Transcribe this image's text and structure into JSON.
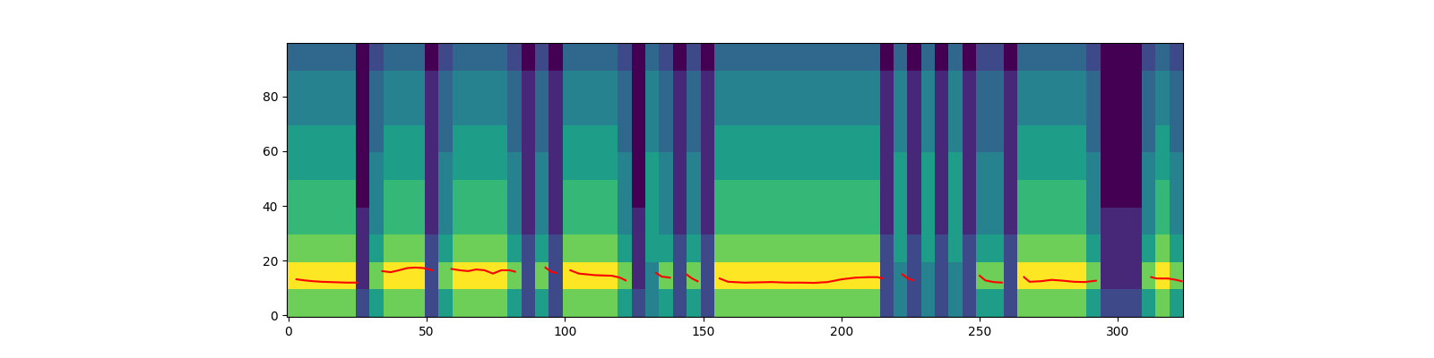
{
  "chart_data": {
    "type": "heatmap",
    "xlim": [
      -0.5,
      323.5
    ],
    "ylim": [
      -0.5,
      99.5
    ],
    "xticks": [
      0,
      50,
      100,
      150,
      200,
      250,
      300
    ],
    "yticks": [
      0,
      20,
      40,
      60,
      80
    ],
    "cells": [
      [
        7,
        7,
        7,
        7,
        7,
        2,
        5,
        7,
        7,
        7,
        2,
        5,
        7,
        7,
        7,
        7,
        5,
        2,
        5,
        2,
        7,
        7,
        7,
        7,
        5,
        2,
        4,
        5,
        2,
        5,
        2,
        7,
        7,
        7,
        7,
        7,
        7,
        7,
        7,
        7,
        7,
        7,
        7,
        2,
        4,
        2,
        4,
        2,
        4,
        2,
        5,
        5,
        2,
        7,
        7,
        7,
        7,
        7,
        5,
        2,
        2,
        2,
        5,
        7,
        5
      ],
      [
        9,
        9,
        9,
        9,
        9,
        1,
        7,
        9,
        9,
        9,
        2,
        7,
        9,
        9,
        9,
        9,
        7,
        2,
        7,
        2,
        9,
        9,
        9,
        9,
        7,
        1,
        4,
        7,
        2,
        7,
        2,
        9,
        9,
        9,
        9,
        9,
        9,
        9,
        9,
        9,
        9,
        9,
        9,
        2,
        4,
        2,
        4,
        2,
        4,
        2,
        7,
        7,
        2,
        9,
        9,
        9,
        9,
        9,
        7,
        1,
        1,
        1,
        7,
        9,
        7
      ],
      [
        7,
        7,
        7,
        7,
        7,
        1,
        5,
        7,
        7,
        7,
        2,
        5,
        7,
        7,
        7,
        7,
        5,
        2,
        5,
        2,
        7,
        7,
        7,
        7,
        5,
        1,
        5,
        5,
        2,
        5,
        2,
        7,
        7,
        7,
        7,
        7,
        7,
        7,
        7,
        7,
        7,
        7,
        7,
        2,
        5,
        2,
        5,
        2,
        5,
        2,
        5,
        5,
        2,
        7,
        7,
        7,
        7,
        7,
        5,
        1,
        1,
        1,
        5,
        7,
        5
      ],
      [
        6,
        6,
        6,
        6,
        6,
        1,
        4,
        6,
        6,
        6,
        1,
        4,
        6,
        6,
        6,
        6,
        4,
        1,
        4,
        1,
        6,
        6,
        6,
        6,
        4,
        1,
        5,
        4,
        1,
        4,
        1,
        6,
        6,
        6,
        6,
        6,
        6,
        6,
        6,
        6,
        6,
        6,
        6,
        1,
        5,
        1,
        5,
        1,
        5,
        1,
        4,
        4,
        1,
        6,
        6,
        6,
        6,
        6,
        4,
        1,
        1,
        1,
        4,
        6,
        4
      ],
      [
        6,
        6,
        6,
        6,
        6,
        0,
        4,
        6,
        6,
        6,
        1,
        4,
        6,
        6,
        6,
        6,
        4,
        1,
        4,
        1,
        6,
        6,
        6,
        6,
        4,
        0,
        5,
        4,
        1,
        4,
        1,
        6,
        6,
        6,
        6,
        6,
        6,
        6,
        6,
        6,
        6,
        6,
        6,
        1,
        5,
        1,
        5,
        1,
        5,
        1,
        4,
        4,
        1,
        6,
        6,
        6,
        6,
        6,
        4,
        0,
        0,
        0,
        4,
        6,
        4
      ],
      [
        5,
        5,
        5,
        5,
        5,
        0,
        4,
        5,
        5,
        5,
        1,
        4,
        5,
        5,
        5,
        5,
        4,
        1,
        4,
        1,
        5,
        5,
        5,
        5,
        4,
        0,
        5,
        4,
        1,
        4,
        1,
        5,
        5,
        5,
        5,
        5,
        5,
        5,
        5,
        5,
        5,
        5,
        5,
        1,
        5,
        1,
        5,
        1,
        5,
        1,
        4,
        4,
        1,
        5,
        5,
        5,
        5,
        5,
        4,
        0,
        0,
        0,
        4,
        5,
        4
      ],
      [
        5,
        5,
        5,
        5,
        5,
        0,
        3,
        5,
        5,
        5,
        1,
        3,
        5,
        5,
        5,
        5,
        3,
        1,
        3,
        1,
        5,
        5,
        5,
        5,
        3,
        0,
        4,
        3,
        1,
        3,
        1,
        5,
        5,
        5,
        5,
        5,
        5,
        5,
        5,
        5,
        5,
        5,
        5,
        1,
        4,
        1,
        4,
        1,
        4,
        1,
        3,
        3,
        1,
        5,
        5,
        5,
        5,
        5,
        3,
        0,
        0,
        0,
        3,
        5,
        3
      ],
      [
        4,
        4,
        4,
        4,
        4,
        0,
        3,
        4,
        4,
        4,
        1,
        3,
        4,
        4,
        4,
        4,
        3,
        1,
        3,
        1,
        4,
        4,
        4,
        4,
        3,
        0,
        4,
        3,
        1,
        3,
        1,
        4,
        4,
        4,
        4,
        4,
        4,
        4,
        4,
        4,
        4,
        4,
        4,
        1,
        4,
        1,
        4,
        1,
        4,
        1,
        3,
        3,
        1,
        4,
        4,
        4,
        4,
        4,
        3,
        0,
        0,
        0,
        3,
        4,
        3
      ],
      [
        4,
        4,
        4,
        4,
        4,
        0,
        3,
        4,
        4,
        4,
        1,
        3,
        4,
        4,
        4,
        4,
        3,
        1,
        3,
        1,
        4,
        4,
        4,
        4,
        3,
        0,
        4,
        3,
        1,
        3,
        1,
        4,
        4,
        4,
        4,
        4,
        4,
        4,
        4,
        4,
        4,
        4,
        4,
        1,
        4,
        1,
        4,
        1,
        4,
        1,
        3,
        3,
        1,
        4,
        4,
        4,
        4,
        4,
        3,
        0,
        0,
        0,
        3,
        4,
        3
      ],
      [
        3,
        3,
        3,
        3,
        3,
        0,
        2,
        3,
        3,
        3,
        0,
        2,
        3,
        3,
        3,
        3,
        2,
        0,
        2,
        0,
        3,
        3,
        3,
        3,
        2,
        0,
        3,
        2,
        0,
        2,
        0,
        3,
        3,
        3,
        3,
        3,
        3,
        3,
        3,
        3,
        3,
        3,
        3,
        0,
        3,
        0,
        3,
        0,
        3,
        0,
        2,
        2,
        0,
        3,
        3,
        3,
        3,
        3,
        2,
        0,
        0,
        0,
        2,
        3,
        2
      ]
    ],
    "pitch": {
      "type": "line",
      "color": "red",
      "x": [
        3,
        6,
        9,
        12,
        15,
        18,
        21,
        25,
        29,
        34,
        37,
        40,
        43,
        46,
        49,
        52,
        55,
        59,
        62,
        65,
        68,
        71,
        74,
        77,
        80,
        82,
        87,
        93,
        95,
        97,
        99,
        102,
        105,
        108,
        111,
        114,
        117,
        120,
        122,
        127,
        133,
        135,
        138,
        141,
        144,
        146,
        148,
        152,
        156,
        159,
        165,
        170,
        175,
        180,
        185,
        190,
        195,
        200,
        205,
        210,
        213,
        215,
        219,
        222,
        224,
        226,
        240,
        250,
        252,
        255,
        258,
        262,
        266,
        268,
        272,
        276,
        280,
        284,
        288,
        292,
        300,
        312,
        314,
        318,
        321,
        323
      ],
      "values": [
        13.2,
        12.8,
        12.5,
        12.3,
        12.2,
        12.1,
        12.0,
        12.0,
        null,
        16.2,
        15.8,
        16.5,
        17.3,
        17.5,
        17.3,
        16.5,
        null,
        17,
        16.5,
        16.2,
        16.8,
        16.5,
        15.3,
        16.5,
        16.5,
        16,
        null,
        17.5,
        16,
        15.5,
        null,
        16.5,
        15.3,
        15,
        14.7,
        14.6,
        14.5,
        13.8,
        12.8,
        null,
        15.5,
        14.2,
        13.8,
        null,
        15,
        13.5,
        12.5,
        null,
        13.5,
        12.3,
        12,
        12.1,
        12.2,
        12,
        12,
        11.9,
        12.2,
        13.2,
        13.8,
        14,
        14,
        13.5,
        null,
        15,
        13.5,
        12.8,
        null,
        14.5,
        12.8,
        12.2,
        12,
        null,
        14,
        12.3,
        12.5,
        13,
        12.7,
        12.3,
        12.2,
        12.7,
        null,
        14,
        13.5,
        13.5,
        13,
        12.5
      ]
    }
  }
}
